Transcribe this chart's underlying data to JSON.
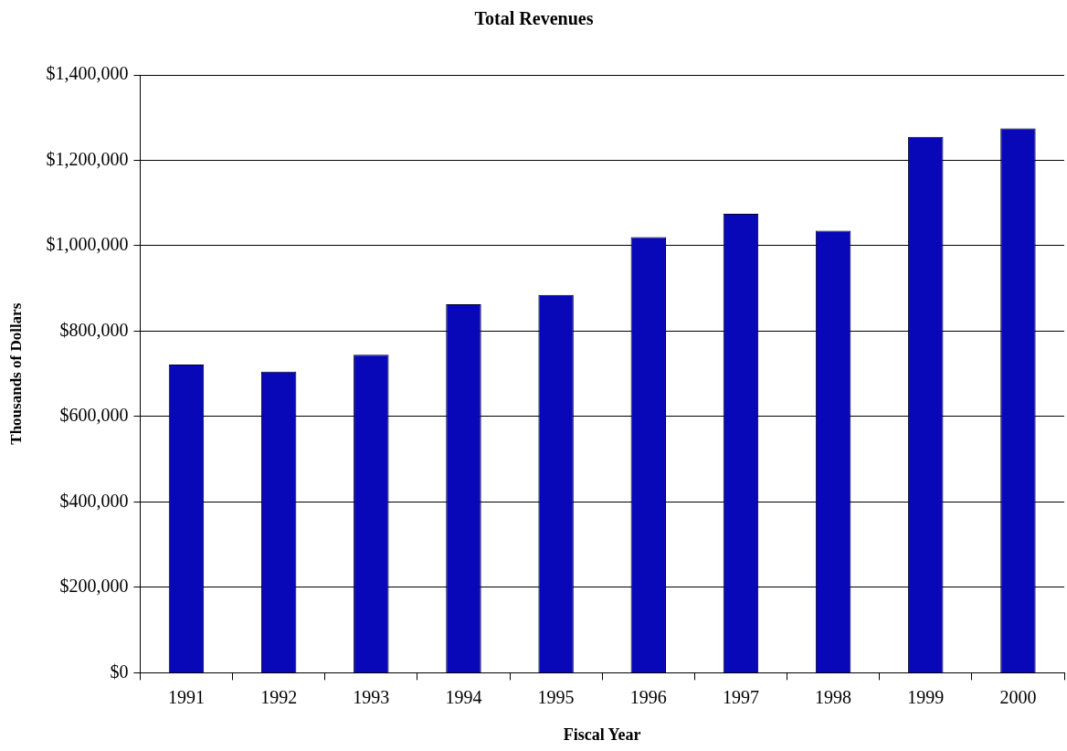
{
  "chart_data": {
    "type": "bar",
    "title": "Total Revenues",
    "xlabel": "Fiscal Year",
    "ylabel": "Thousands of Dollars",
    "categories": [
      "1991",
      "1992",
      "1993",
      "1994",
      "1995",
      "1996",
      "1997",
      "1998",
      "1999",
      "2000"
    ],
    "values": [
      722000,
      705000,
      745000,
      863000,
      885000,
      1020000,
      1075000,
      1035000,
      1255000,
      1275000
    ],
    "color": "#0808b8",
    "ylim": [
      0,
      1400000
    ],
    "yticks": [
      {
        "value": 0,
        "label": "$0"
      },
      {
        "value": 200000,
        "label": "$200,000"
      },
      {
        "value": 400000,
        "label": "$400,000"
      },
      {
        "value": 600000,
        "label": "$600,000"
      },
      {
        "value": 800000,
        "label": "$800,000"
      },
      {
        "value": 1000000,
        "label": "$1,000,000"
      },
      {
        "value": 1200000,
        "label": "$1,200,000"
      },
      {
        "value": 1400000,
        "label": "$1,400,000"
      }
    ],
    "grid": "y",
    "legend": false
  }
}
